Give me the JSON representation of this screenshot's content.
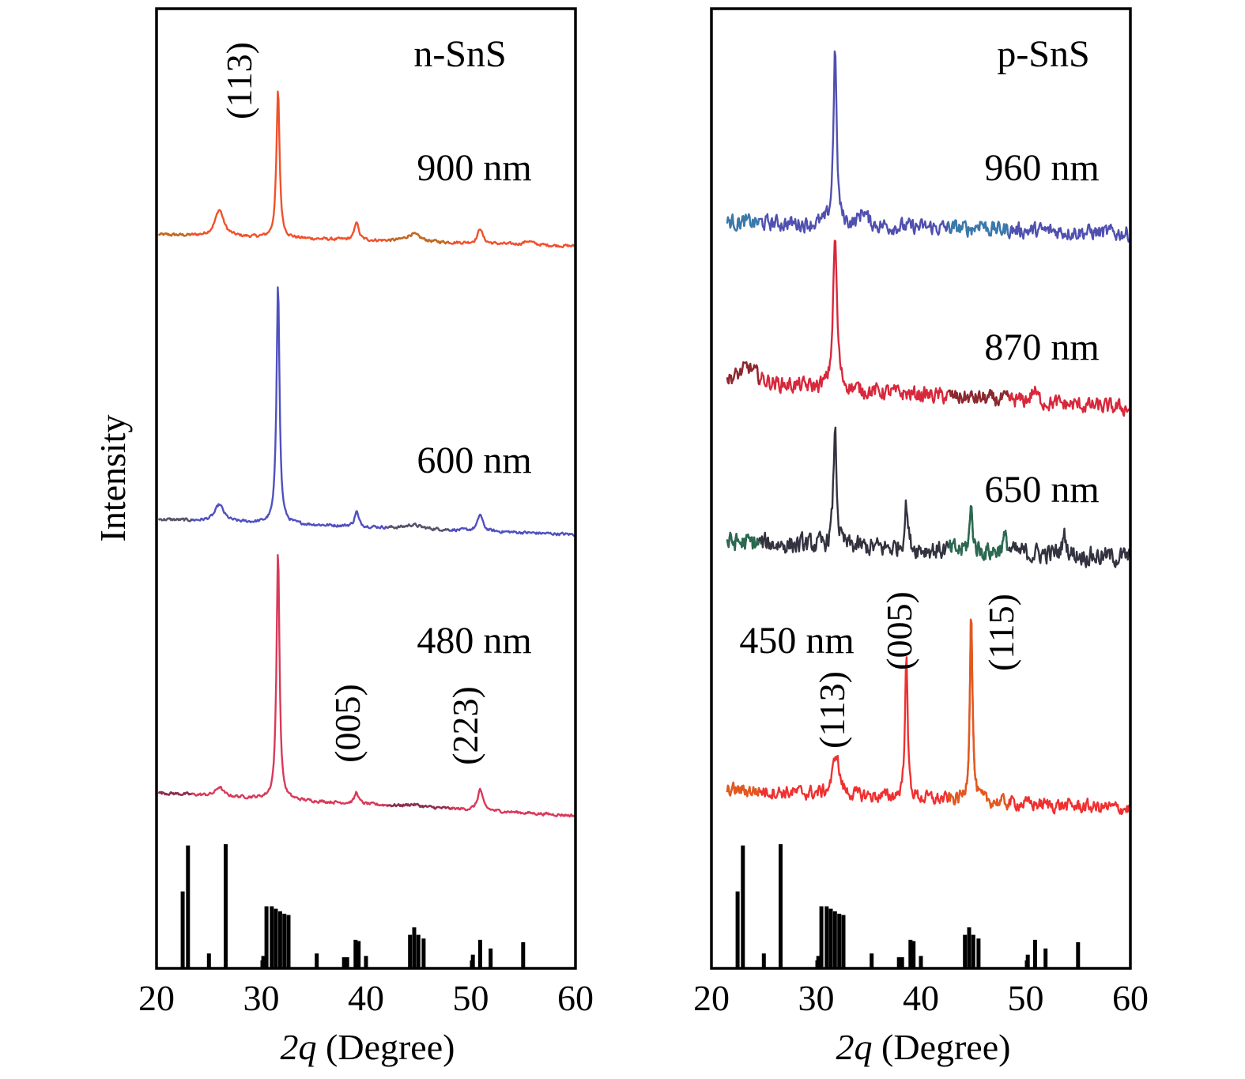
{
  "chart_data": [
    {
      "type": "line",
      "title": "n-SnS",
      "xlabel_var": "2q",
      "xlabel_rest": " (Degree)",
      "ylabel": "Intensity",
      "xlim": [
        20,
        60
      ],
      "xticks": [
        "20",
        "30",
        "40",
        "50",
        "60"
      ],
      "series": [
        {
          "name": "900 nm",
          "color": "#f0512c",
          "color2": "#c06a20",
          "baseline_start": 0.0,
          "baseline_end": -0.15,
          "noise": 0.03,
          "peaks": [
            [
              26.0,
              0.35,
              0.5
            ],
            [
              31.6,
              1.95,
              0.18
            ],
            [
              39.1,
              0.25,
              0.22
            ],
            [
              44.5,
              0.1,
              0.8
            ],
            [
              50.9,
              0.2,
              0.28
            ],
            [
              55.5,
              0.05,
              0.5
            ]
          ]
        },
        {
          "name": "600 nm",
          "color": "#5050c0",
          "color2": "#555566",
          "baseline_start": 0.0,
          "baseline_end": -0.2,
          "noise": 0.03,
          "peaks": [
            [
              26.0,
              0.22,
              0.5
            ],
            [
              31.6,
              3.2,
              0.17
            ],
            [
              39.1,
              0.2,
              0.22
            ],
            [
              44.5,
              0.05,
              0.8
            ],
            [
              50.9,
              0.22,
              0.28
            ]
          ]
        },
        {
          "name": "480 nm",
          "color": "#d83a5a",
          "color2": "#8a3050",
          "baseline_start": 0.0,
          "baseline_end": -0.3,
          "noise": 0.03,
          "peaks": [
            [
              26.0,
              0.12,
              0.4
            ],
            [
              31.6,
              3.3,
              0.17
            ],
            [
              39.1,
              0.15,
              0.22
            ],
            [
              44.5,
              0.03,
              0.8
            ],
            [
              50.9,
              0.28,
              0.28
            ]
          ]
        }
      ],
      "reference_x": [
        22.5,
        23.0,
        25.0,
        26.6,
        30.2,
        30.5,
        31.0,
        31.4,
        31.8,
        32.2,
        32.6,
        35.3,
        37.9,
        38.2,
        39.0,
        39.3,
        40.0,
        44.2,
        44.6,
        45.0,
        45.5,
        50.2,
        50.9,
        51.9,
        55.0
      ],
      "reference_y": [
        0.62,
        0.99,
        0.12,
        1.0,
        0.1,
        0.5,
        0.5,
        0.48,
        0.46,
        0.44,
        0.43,
        0.12,
        0.09,
        0.09,
        0.23,
        0.22,
        0.1,
        0.27,
        0.33,
        0.27,
        0.24,
        0.11,
        0.23,
        0.16,
        0.21
      ],
      "annotations": [
        "(113)",
        "(005)",
        "(223)"
      ]
    },
    {
      "type": "line",
      "title": "p-SnS",
      "xlabel_var": "2q",
      "xlabel_rest": " (Degree)",
      "xlim": [
        20,
        60
      ],
      "xticks": [
        "20",
        "30",
        "40",
        "50",
        "60"
      ],
      "series": [
        {
          "name": "960 nm",
          "color": "#5050b0",
          "color2": "#3a7aaa",
          "baseline_start": 0.2,
          "baseline_end": 0.05,
          "noise": 0.16,
          "peaks": [
            [
              31.8,
              2.35,
              0.18
            ],
            [
              34.5,
              0.2,
              0.4
            ],
            [
              45.7,
              0.1,
              0.3
            ]
          ]
        },
        {
          "name": "870 nm",
          "color": "#d8283c",
          "color2": "#8a2a30",
          "baseline_start": 0.3,
          "baseline_end": -0.05,
          "noise": 0.16,
          "peaks": [
            [
              23.5,
              0.2,
              1.0
            ],
            [
              31.8,
              2.0,
              0.22
            ],
            [
              50.8,
              0.15,
              0.35
            ]
          ]
        },
        {
          "name": "650 nm",
          "color": "#333340",
          "color2": "#2a6a50",
          "baseline_start": 0.25,
          "baseline_end": 0.05,
          "noise": 0.2,
          "peaks": [
            [
              31.8,
              1.55,
              0.18
            ],
            [
              38.6,
              0.6,
              0.18
            ],
            [
              44.8,
              0.55,
              0.18
            ],
            [
              48.0,
              0.18,
              0.3
            ],
            [
              53.7,
              0.25,
              0.25
            ]
          ]
        },
        {
          "name": "450 nm",
          "color": "#f03030",
          "color2": "#e05a20",
          "baseline_start": 0.25,
          "baseline_end": 0.0,
          "noise": 0.14,
          "peaks": [
            [
              31.9,
              0.55,
              0.35
            ],
            [
              38.6,
              1.9,
              0.15
            ],
            [
              44.8,
              2.55,
              0.15
            ]
          ]
        }
      ],
      "reference_x": [
        22.5,
        23.0,
        25.0,
        26.6,
        30.2,
        30.5,
        31.0,
        31.4,
        31.8,
        32.2,
        32.6,
        35.3,
        37.9,
        38.2,
        39.0,
        39.3,
        40.0,
        44.2,
        44.6,
        45.0,
        45.5,
        50.2,
        50.9,
        51.9,
        55.0
      ],
      "reference_y": [
        0.62,
        0.99,
        0.12,
        1.0,
        0.1,
        0.5,
        0.5,
        0.48,
        0.46,
        0.44,
        0.43,
        0.12,
        0.09,
        0.09,
        0.23,
        0.22,
        0.1,
        0.27,
        0.33,
        0.27,
        0.24,
        0.11,
        0.23,
        0.16,
        0.21
      ],
      "annotations": [
        "(113)",
        "(005)",
        "(115)"
      ]
    }
  ]
}
